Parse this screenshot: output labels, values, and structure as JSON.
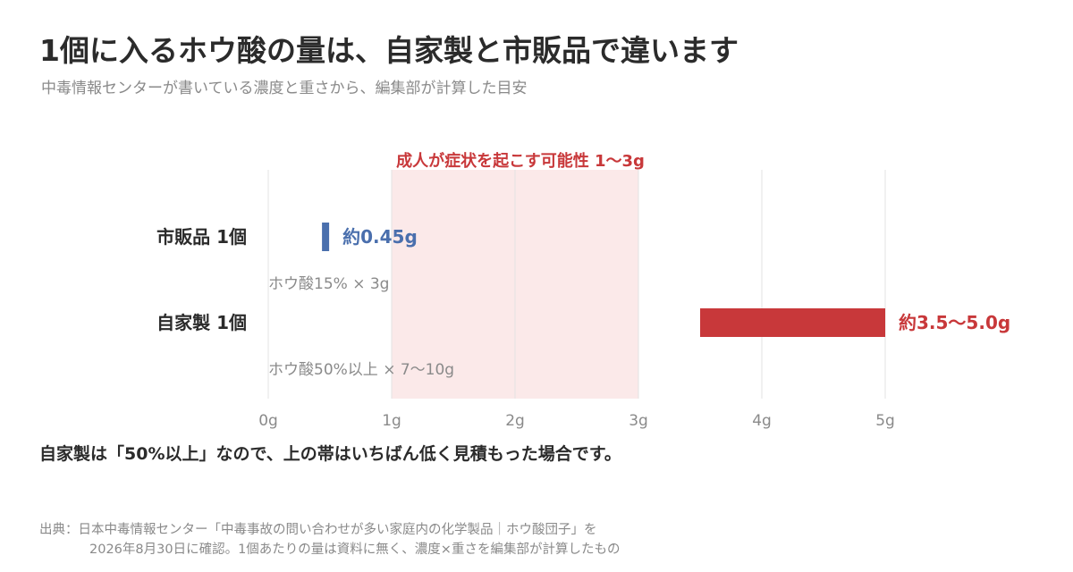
{
  "header": {
    "title": "1個に入るホウ酸の量は、自家製と市販品で違います",
    "subtitle": "中毒情報センターが書いている濃度と重さから、編集部が計算した目安"
  },
  "chart_data": {
    "type": "bar",
    "orientation": "horizontal",
    "xlim": [
      0,
      5
    ],
    "x_ticks": [
      "0g",
      "1g",
      "2g",
      "3g",
      "4g",
      "5g"
    ],
    "grid": true,
    "band": {
      "label": "成人が症状を起こす可能性 1〜3g",
      "range": [
        1,
        3
      ],
      "color": "#fbe9e9",
      "label_color": "#c8383a"
    },
    "rows": [
      {
        "label": "市販品 1個",
        "sublabel": "ホウ酸15% × 3g",
        "range": [
          0.45,
          0.45
        ],
        "value_label": "約0.45g",
        "color": "#4a6fad"
      },
      {
        "label": "自家製 1個",
        "sublabel": "ホウ酸50%以上 × 7〜10g",
        "range": [
          3.5,
          5.0
        ],
        "value_label": "約3.5〜5.0g",
        "color": "#c8383a"
      }
    ]
  },
  "footer": {
    "note": "自家製は「50%以上」なので、上の帯はいちばん低く見積もった場合です。",
    "source_line1": "出典：日本中毒情報センター「中毒事故の問い合わせが多い家庭内の化学製品｜ホウ酸団子」を",
    "source_line2": "2026年8月30日に確認。1個あたりの量は資料に無く、濃度×重さを編集部が計算したもの"
  }
}
